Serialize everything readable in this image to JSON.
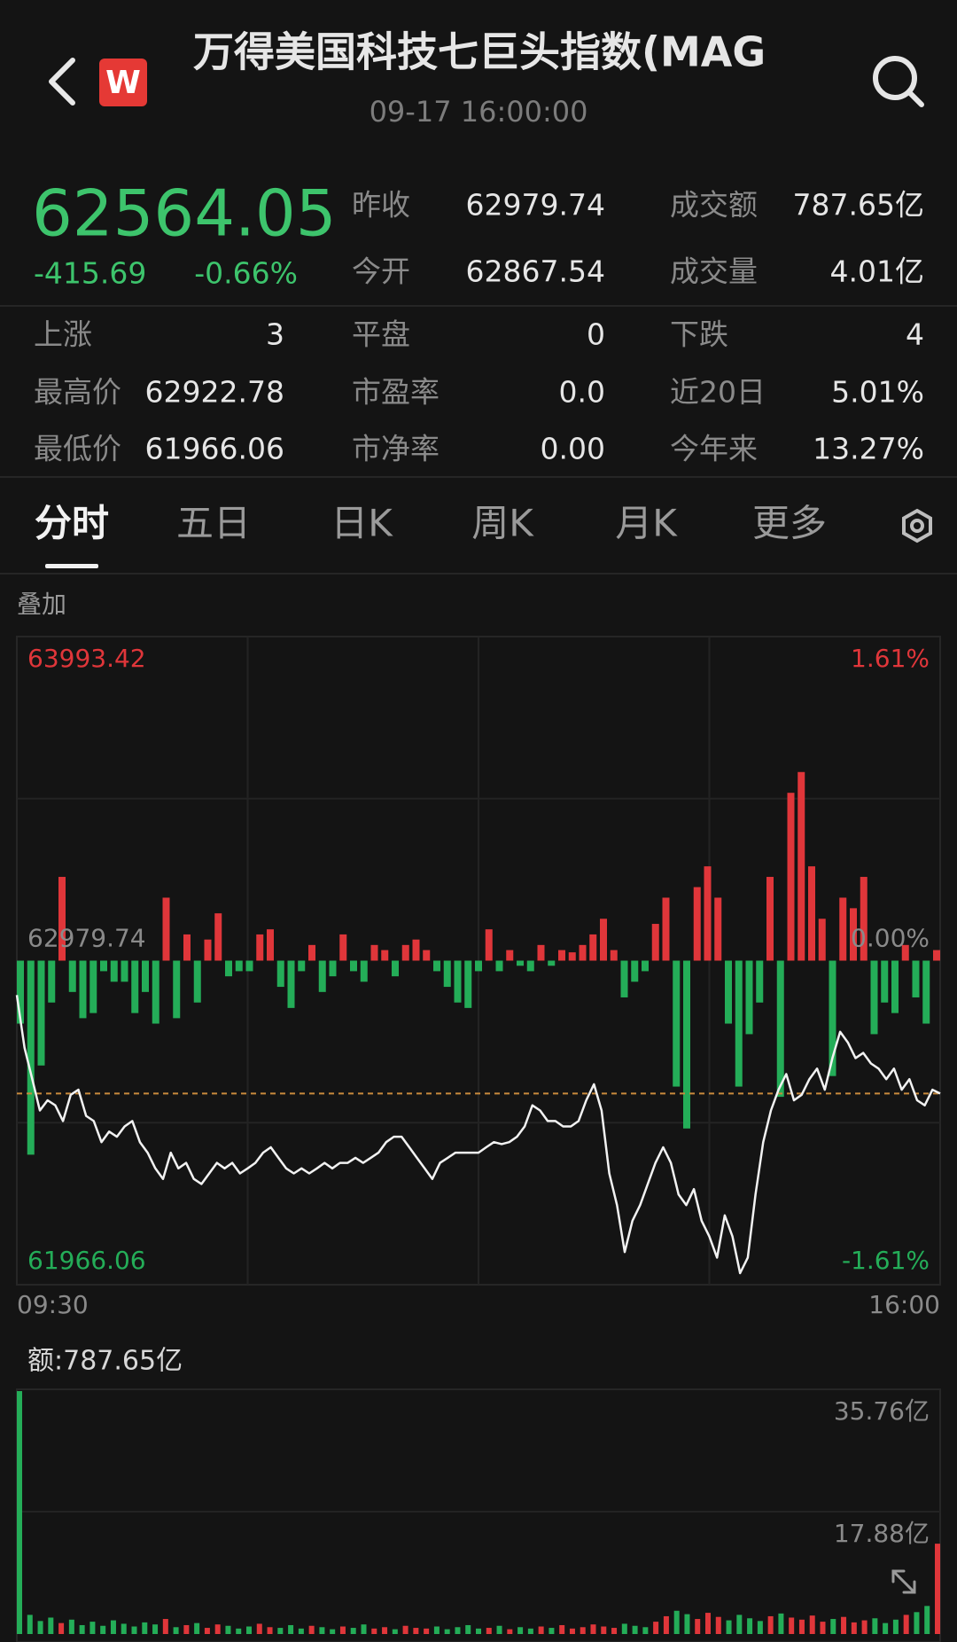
{
  "header": {
    "title": "万得美国科技七巨头指数(MAGS",
    "time": "09-17 16:00:00"
  },
  "quote": {
    "price": "62564.05",
    "change": "-415.69",
    "change_pct": "-0.66%"
  },
  "stats": [
    {
      "label": "昨收",
      "value": "62979.74"
    },
    {
      "label": "成交额",
      "value": "787.65亿"
    },
    {
      "label": "今开",
      "value": "62867.54"
    },
    {
      "label": "成交量",
      "value": "4.01亿"
    },
    {
      "label": "上涨",
      "value": "3"
    },
    {
      "label": "平盘",
      "value": "0"
    },
    {
      "label": "下跌",
      "value": "4"
    },
    {
      "label": "最高价",
      "value": "62922.78"
    },
    {
      "label": "市盈率",
      "value": "0.0"
    },
    {
      "label": "近20日",
      "value": "5.01%"
    },
    {
      "label": "最低价",
      "value": "61966.06"
    },
    {
      "label": "市净率",
      "value": "0.00"
    },
    {
      "label": "今年来",
      "value": "13.27%"
    }
  ],
  "tabs": [
    "分时",
    "五日",
    "日K",
    "周K",
    "月K",
    "更多"
  ],
  "overlay": "叠加",
  "intraday": {
    "type": "line",
    "ylim": [
      61966.06,
      63993.42
    ],
    "yticks": [
      63993.42,
      62979.74,
      61966.06
    ],
    "y2lim": [
      -1.61,
      1.61
    ],
    "y2ticks": [
      {
        "value": 1.61,
        "label": "1.61%"
      },
      {
        "value": 0,
        "label": "0.00%"
      },
      {
        "value": -1.61,
        "label": "-1.61%"
      }
    ],
    "x_labels": [
      "09:30",
      "16:00"
    ],
    "prices": [
      62872,
      62707,
      62609,
      62511,
      62543,
      62527,
      62478,
      62560,
      62576,
      62494,
      62478,
      62412,
      62445,
      62429,
      62461,
      62478,
      62412,
      62379,
      62330,
      62297,
      62379,
      62330,
      62347,
      62297,
      62281,
      62314,
      62347,
      62330,
      62347,
      62314,
      62330,
      62347,
      62379,
      62396,
      62363,
      62330,
      62314,
      62330,
      62314,
      62330,
      62347,
      62330,
      62347,
      62347,
      62363,
      62347,
      62363,
      62379,
      62412,
      62429,
      62429,
      62396,
      62363,
      62330,
      62297,
      62347,
      62363,
      62379,
      62379,
      62379,
      62379,
      62396,
      62412,
      62406,
      62412,
      62429,
      62461,
      62527,
      62511,
      62478,
      62478,
      62461,
      62461,
      62478,
      62543,
      62593,
      62511,
      62314,
      62215,
      62068,
      62166,
      62215,
      62281,
      62347,
      62396,
      62347,
      62248,
      62215,
      62265,
      62166,
      62117,
      62051,
      62183,
      62117,
      62002,
      62051,
      62248,
      62412,
      62511,
      62576,
      62625,
      62543,
      62560,
      62609,
      62642,
      62576,
      62675,
      62757,
      62724,
      62675,
      62691,
      62658,
      62642,
      62609,
      62642,
      62576,
      62609,
      62543,
      62527,
      62576,
      62564.05
    ],
    "bars": [
      -197,
      -607,
      -328,
      -131,
      262,
      -98,
      -180,
      -164,
      -33,
      -66,
      -66,
      -164,
      -98,
      -197,
      197,
      -180,
      82,
      -131,
      66,
      148,
      -49,
      -33,
      -33,
      82,
      98,
      -82,
      -148,
      -33,
      49,
      -98,
      -49,
      82,
      -33,
      -66,
      49,
      33,
      -49,
      49,
      66,
      33,
      -33,
      -82,
      -131,
      -148,
      -33,
      98,
      -33,
      33,
      -16,
      -33,
      49,
      -16,
      33,
      26,
      49,
      82,
      131,
      33,
      -115,
      -66,
      -33,
      115,
      197,
      -394,
      -525,
      230,
      295,
      197,
      -197,
      -394,
      -230,
      -131,
      262,
      -426,
      525,
      590,
      295,
      131,
      -361,
      197,
      164,
      262,
      -230,
      -131,
      -164,
      49,
      -115,
      -197,
      33
    ],
    "up_color": "#e0363a",
    "down_color": "#24ad58",
    "line_color": "#f2f2f2",
    "last_line_color": "#c98a3c"
  },
  "turnover": {
    "type": "bar",
    "label": "额:787.65亿",
    "ylim": [
      0,
      35.76
    ],
    "yticks": [
      {
        "value": 35.76,
        "label": "35.76亿"
      },
      {
        "value": 17.88,
        "label": "17.88亿"
      }
    ],
    "values": [
      35.5,
      2.8,
      1.9,
      2.4,
      1.6,
      2.1,
      1.3,
      1.8,
      1.2,
      2.0,
      1.5,
      1.1,
      1.7,
      1.4,
      2.2,
      1.0,
      1.3,
      1.6,
      0.9,
      1.4,
      1.2,
      0.8,
      1.1,
      1.5,
      1.0,
      0.9,
      1.3,
      0.8,
      1.2,
      1.0,
      0.7,
      1.1,
      0.9,
      1.4,
      0.8,
      1.0,
      0.7,
      1.2,
      0.9,
      0.8,
      1.1,
      0.7,
      1.0,
      1.3,
      0.8,
      0.9,
      1.2,
      0.7,
      1.0,
      0.8,
      1.1,
      0.9,
      1.3,
      0.8,
      1.0,
      1.4,
      1.1,
      0.9,
      1.5,
      1.2,
      1.0,
      1.8,
      2.6,
      3.4,
      2.9,
      2.2,
      3.1,
      2.5,
      2.0,
      2.8,
      2.3,
      1.9,
      2.6,
      3.0,
      2.4,
      2.1,
      2.7,
      1.8,
      2.2,
      2.5,
      1.7,
      2.0,
      2.3,
      1.6,
      2.1,
      2.8,
      3.2,
      4.1,
      13.2
    ]
  }
}
